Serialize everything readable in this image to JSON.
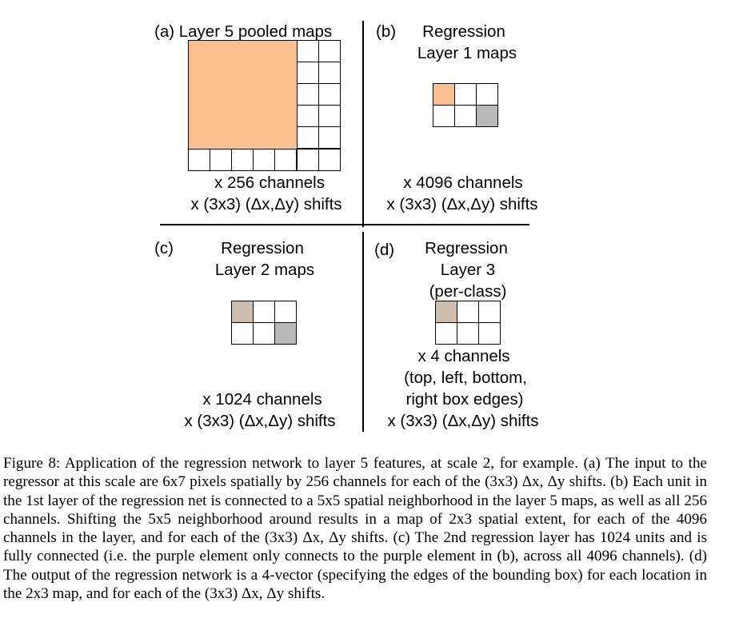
{
  "panel_a": {
    "title": "(a) Layer 5 pooled maps",
    "channels": "x 256 channels",
    "shifts": "x (3x3) (Δx,Δy) shifts"
  },
  "panel_b": {
    "letter": "(b)",
    "title_line1": "Regression",
    "title_line2": "Layer 1 maps",
    "channels": "x 4096 channels",
    "shifts": "x (3x3) (Δx,Δy) shifts"
  },
  "panel_c": {
    "letter": "(c)",
    "title_line1": "Regression",
    "title_line2": "Layer 2 maps",
    "channels": "x 1024 channels",
    "shifts": "x (3x3) (Δx,Δy) shifts"
  },
  "panel_d": {
    "letter": "(d)",
    "title_line1": "Regression",
    "title_line2": "Layer 3",
    "title_line3": "(per-class)",
    "channels": "x 4 channels",
    "desc_line1": "(top, left, bottom,",
    "desc_line2": "right box edges)",
    "shifts": "x (3x3) (Δx,Δy) shifts"
  },
  "colors": {
    "orange": "#f9c08f",
    "gray": "#b8b8b8",
    "taupe": "#cdbeb0"
  },
  "caption": "Figure 8: Application of the regression network to layer 5 features, at scale 2, for example. (a) The input to the regressor at this scale are 6x7 pixels spatially by 256 channels for each of the (3x3) Δx, Δy shifts. (b) Each unit in the 1st layer of the regression net is connected to a 5x5 spatial neighborhood in the layer 5 maps, as well as all 256 channels. Shifting the 5x5 neighborhood around results in a map of 2x3 spatial extent, for each of the 4096 channels in the layer, and for each of the (3x3) Δx, Δy shifts. (c) The 2nd regression layer has 1024 units and is fully connected (i.e. the purple element only connects to the purple element in (b), across all 4096 channels). (d) The output of the regression network is a 4-vector (specifying the edges of the bounding box) for each location in the 2x3 map, and for each of the (3x3) Δx, Δy shifts."
}
